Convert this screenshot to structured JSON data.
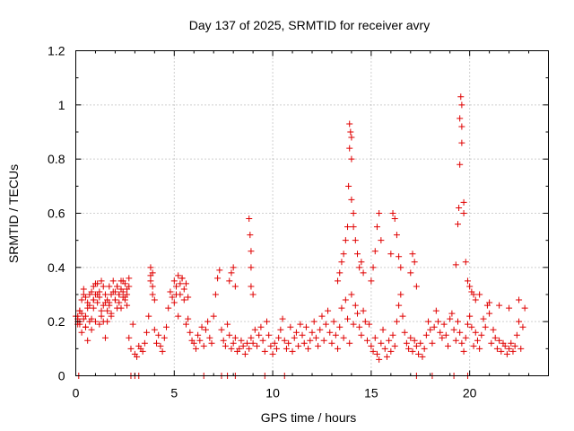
{
  "chart_data": {
    "type": "scatter",
    "title": "Day 137 of 2025, SRMTID for receiver avry",
    "xlabel": "GPS time / hours",
    "ylabel": "SRMTID / TECUs",
    "xlim": [
      0,
      24
    ],
    "ylim": [
      0,
      1.2
    ],
    "xticks": [
      0,
      5,
      10,
      15,
      20
    ],
    "yticks": [
      0,
      0.2,
      0.4,
      0.6,
      0.8,
      1,
      1.2
    ],
    "xtick_labels": [
      "0",
      "5",
      "10",
      "15",
      "20"
    ],
    "ytick_labels": [
      "0",
      "0.2",
      "0.4",
      "0.6",
      "0.8",
      "1",
      "1.2"
    ],
    "grid": true,
    "marker": "+",
    "series": [
      {
        "name": "SRMTID",
        "color": "#e00000",
        "x": [
          0.0,
          0.1,
          0.2,
          0.3,
          0.4,
          0.5,
          0.6,
          0.7,
          0.8,
          0.9,
          1.0,
          1.1,
          1.2,
          1.3,
          1.4,
          1.5,
          1.6,
          1.7,
          1.8,
          1.9,
          2.0,
          2.1,
          2.2,
          2.3,
          2.4,
          2.5,
          2.6,
          2.7,
          2.8,
          2.9,
          3.0,
          3.1,
          3.2,
          3.3,
          3.4,
          3.5,
          3.6,
          3.7,
          3.8,
          3.9,
          4.0,
          4.1,
          4.2,
          4.3,
          4.4,
          4.5,
          4.6,
          4.7,
          4.8,
          4.9,
          5.0,
          5.1,
          5.2,
          5.3,
          5.4,
          5.5,
          5.6,
          5.7,
          5.8,
          5.9,
          6.0,
          6.1,
          6.2,
          6.3,
          6.4,
          6.5,
          6.6,
          6.7,
          6.8,
          6.9,
          7.0,
          7.1,
          7.2,
          7.3,
          7.4,
          7.5,
          7.6,
          7.7,
          7.8,
          7.9,
          8.0,
          8.1,
          8.2,
          8.3,
          8.4,
          8.5,
          8.6,
          8.7,
          8.8,
          8.9,
          9.0,
          9.1,
          9.2,
          9.3,
          9.4,
          9.5,
          9.6,
          9.7,
          9.8,
          9.9,
          10.0,
          10.1,
          10.2,
          10.3,
          10.4,
          10.5,
          10.6,
          10.7,
          10.8,
          10.9,
          11.0,
          11.1,
          11.2,
          11.3,
          11.4,
          11.5,
          11.6,
          11.7,
          11.8,
          11.9,
          12.0,
          12.1,
          12.2,
          12.3,
          12.4,
          12.5,
          12.6,
          12.7,
          12.8,
          12.9,
          13.0,
          13.1,
          13.2,
          13.3,
          13.4,
          13.5,
          13.6,
          13.7,
          13.8,
          13.9,
          14.0,
          14.1,
          14.2,
          14.3,
          14.4,
          14.5,
          14.6,
          14.7,
          14.8,
          14.9,
          15.0,
          15.1,
          15.2,
          15.3,
          15.4,
          15.5,
          15.6,
          15.7,
          15.8,
          15.9,
          16.0,
          16.1,
          16.2,
          16.3,
          16.4,
          16.5,
          16.6,
          16.7,
          16.8,
          16.9,
          17.0,
          17.1,
          17.2,
          17.3,
          17.4,
          17.5,
          17.6,
          17.7,
          17.8,
          17.9,
          18.0,
          18.1,
          18.2,
          18.3,
          18.4,
          18.5,
          18.6,
          18.7,
          18.8,
          18.9,
          19.0,
          19.1,
          19.2,
          19.3,
          19.4,
          19.5,
          19.6,
          19.7,
          19.8,
          19.9,
          20.0,
          20.1,
          20.2,
          20.3,
          20.4,
          20.5,
          20.6,
          20.7,
          20.8,
          20.9,
          21.0,
          21.1,
          21.2,
          21.3,
          21.4,
          21.5,
          21.6,
          21.7,
          21.8,
          21.9,
          22.0,
          22.1,
          22.2,
          22.3,
          22.4,
          22.5,
          22.6,
          22.7,
          22.8,
          0.1,
          0.1,
          0.1,
          0.2,
          0.2,
          0.2,
          0.3,
          0.3,
          0.4,
          0.4,
          0.5,
          0.5,
          0.5,
          0.6,
          0.6,
          0.7,
          0.7,
          0.8,
          0.8,
          0.9,
          0.9,
          0.9,
          1.0,
          1.0,
          1.1,
          1.1,
          1.2,
          1.2,
          1.3,
          1.3,
          1.4,
          1.4,
          1.5,
          1.5,
          1.6,
          1.6,
          1.7,
          1.7,
          1.8,
          1.8,
          1.9,
          2.0,
          2.0,
          2.1,
          2.1,
          2.2,
          2.2,
          2.3,
          2.3,
          2.4,
          2.4,
          2.5,
          2.5,
          2.6,
          2.6,
          2.7,
          2.7,
          3.8,
          3.8,
          3.9,
          3.9,
          4.0,
          5.0,
          5.1,
          5.2,
          5.3,
          5.4,
          5.5,
          5.6,
          5.7,
          7.8,
          7.9,
          8.0,
          8.1,
          8.8,
          8.85,
          8.9,
          8.9,
          8.9,
          9.0,
          13.3,
          13.4,
          13.5,
          13.6,
          13.7,
          13.8,
          13.85,
          13.9,
          13.9,
          13.95,
          14.0,
          14.0,
          14.0,
          14.1,
          14.1,
          14.2,
          14.3,
          14.4,
          14.5,
          14.6,
          15.0,
          15.1,
          15.2,
          15.3,
          15.4,
          15.5,
          16.0,
          16.1,
          16.2,
          16.3,
          16.4,
          16.5,
          17.0,
          17.1,
          17.2,
          17.3,
          19.3,
          19.4,
          19.45,
          19.5,
          19.5,
          19.55,
          19.6,
          19.6,
          19.6,
          19.7,
          19.7,
          19.8,
          19.9,
          20.0,
          20.1,
          20.2,
          20.3,
          20.5,
          21.0,
          21.5,
          22.0,
          22.5,
          2.8,
          3.0,
          3.2,
          6.5,
          7.4,
          7.7,
          8.1,
          9.6,
          10.6,
          17.3,
          18.1,
          19.2,
          19.9,
          0.15
        ],
        "y": [
          0.22,
          0.19,
          0.24,
          0.16,
          0.21,
          0.18,
          0.13,
          0.2,
          0.17,
          0.28,
          0.34,
          0.3,
          0.19,
          0.22,
          0.26,
          0.14,
          0.2,
          0.27,
          0.23,
          0.31,
          0.28,
          0.33,
          0.3,
          0.25,
          0.35,
          0.29,
          0.32,
          0.14,
          0.1,
          0.19,
          0.08,
          0.07,
          0.11,
          0.1,
          0.09,
          0.12,
          0.16,
          0.22,
          0.37,
          0.33,
          0.17,
          0.12,
          0.15,
          0.11,
          0.09,
          0.14,
          0.18,
          0.25,
          0.31,
          0.29,
          0.27,
          0.3,
          0.22,
          0.34,
          0.36,
          0.28,
          0.19,
          0.21,
          0.16,
          0.13,
          0.12,
          0.1,
          0.15,
          0.13,
          0.18,
          0.11,
          0.17,
          0.2,
          0.14,
          0.12,
          0.22,
          0.3,
          0.36,
          0.39,
          0.17,
          0.13,
          0.11,
          0.19,
          0.15,
          0.1,
          0.12,
          0.14,
          0.09,
          0.1,
          0.13,
          0.11,
          0.08,
          0.12,
          0.1,
          0.14,
          0.12,
          0.17,
          0.11,
          0.15,
          0.18,
          0.13,
          0.09,
          0.2,
          0.15,
          0.11,
          0.08,
          0.12,
          0.1,
          0.14,
          0.17,
          0.21,
          0.13,
          0.1,
          0.12,
          0.18,
          0.09,
          0.14,
          0.16,
          0.11,
          0.19,
          0.15,
          0.12,
          0.18,
          0.1,
          0.13,
          0.16,
          0.2,
          0.14,
          0.11,
          0.17,
          0.22,
          0.13,
          0.19,
          0.24,
          0.16,
          0.12,
          0.2,
          0.15,
          0.1,
          0.18,
          0.25,
          0.14,
          0.28,
          0.21,
          0.12,
          0.3,
          0.19,
          0.26,
          0.23,
          0.18,
          0.15,
          0.24,
          0.2,
          0.13,
          0.19,
          0.11,
          0.09,
          0.14,
          0.08,
          0.06,
          0.12,
          0.17,
          0.1,
          0.07,
          0.13,
          0.09,
          0.15,
          0.11,
          0.2,
          0.26,
          0.3,
          0.22,
          0.16,
          0.12,
          0.1,
          0.14,
          0.09,
          0.13,
          0.11,
          0.08,
          0.12,
          0.07,
          0.1,
          0.15,
          0.2,
          0.17,
          0.12,
          0.18,
          0.24,
          0.2,
          0.16,
          0.14,
          0.19,
          0.15,
          0.11,
          0.21,
          0.23,
          0.17,
          0.13,
          0.2,
          0.16,
          0.12,
          0.09,
          0.14,
          0.19,
          0.22,
          0.18,
          0.11,
          0.16,
          0.13,
          0.1,
          0.15,
          0.21,
          0.18,
          0.26,
          0.23,
          0.12,
          0.17,
          0.14,
          0.1,
          0.13,
          0.09,
          0.12,
          0.11,
          0.08,
          0.1,
          0.12,
          0.09,
          0.11,
          0.15,
          0.2,
          0.1,
          0.18,
          0.25,
          0.21,
          0.2,
          0.22,
          0.24,
          0.2,
          0.19,
          0.23,
          0.28,
          0.3,
          0.32,
          0.18,
          0.29,
          0.22,
          0.27,
          0.25,
          0.3,
          0.26,
          0.31,
          0.21,
          0.33,
          0.28,
          0.25,
          0.2,
          0.3,
          0.27,
          0.34,
          0.29,
          0.31,
          0.24,
          0.35,
          0.2,
          0.33,
          0.27,
          0.3,
          0.24,
          0.28,
          0.33,
          0.26,
          0.3,
          0.22,
          0.35,
          0.28,
          0.31,
          0.33,
          0.25,
          0.3,
          0.27,
          0.35,
          0.32,
          0.29,
          0.31,
          0.34,
          0.28,
          0.26,
          0.3,
          0.33,
          0.36,
          0.4,
          0.35,
          0.38,
          0.3,
          0.28,
          0.35,
          0.33,
          0.37,
          0.3,
          0.36,
          0.32,
          0.34,
          0.29,
          0.35,
          0.38,
          0.4,
          0.33,
          0.58,
          0.52,
          0.46,
          0.4,
          0.33,
          0.3,
          0.35,
          0.38,
          0.42,
          0.45,
          0.5,
          0.55,
          0.7,
          0.84,
          0.93,
          0.9,
          0.88,
          0.8,
          0.65,
          0.6,
          0.55,
          0.5,
          0.45,
          0.4,
          0.42,
          0.38,
          0.35,
          0.4,
          0.46,
          0.55,
          0.6,
          0.5,
          0.45,
          0.6,
          0.58,
          0.52,
          0.44,
          0.4,
          0.38,
          0.45,
          0.42,
          0.33,
          0.41,
          0.56,
          0.62,
          0.78,
          0.95,
          1.03,
          1.0,
          0.92,
          0.86,
          0.64,
          0.6,
          0.42,
          0.35,
          0.33,
          0.31,
          0.3,
          0.28,
          0.3,
          0.27,
          0.26,
          0.25,
          0.28,
          0.0,
          0.0,
          0.0,
          0.0,
          0.0,
          0.0,
          0.0,
          0.0,
          0.0,
          0.0,
          0.0,
          0.0,
          0.0,
          0.0
        ]
      }
    ]
  }
}
